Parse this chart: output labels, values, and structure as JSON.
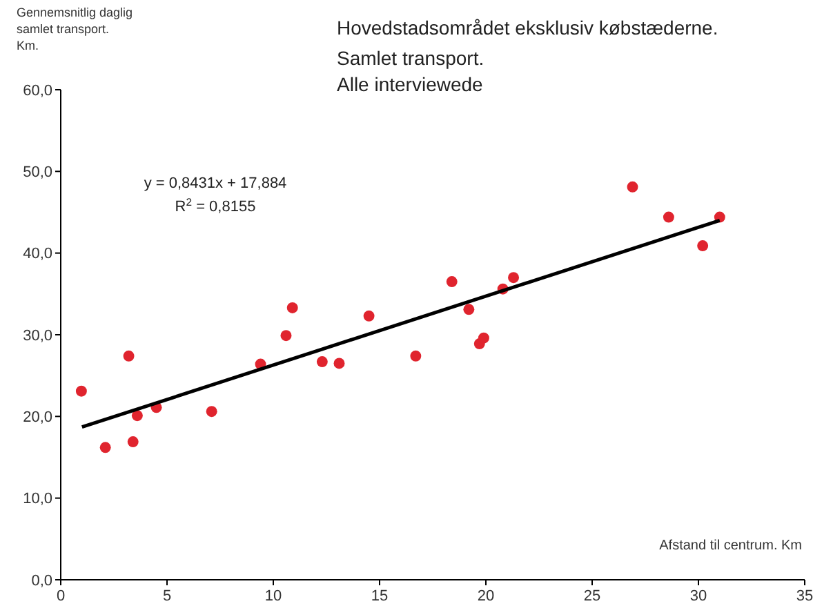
{
  "chart_data": {
    "type": "scatter",
    "title": "Hovedstadsområdet eksklusiv købstæderne.",
    "subtitle": "Samlet transport.\nAlle interviewede",
    "ylabel": "Gennemsnitlig daglig\nsamlet transport.\nKm.",
    "xlabel": "Afstand til centrum. Km",
    "annotations": [
      {
        "text": "y = 0,8431x + 17,884\nR$^{2}$ = 0,8155"
      }
    ],
    "series": [
      {
        "color": "#e0242e",
        "marker": "circle",
        "x": [
          0.97,
          2.1,
          3.2,
          3.4,
          3.6,
          4.5,
          7.1,
          9.4,
          10.6,
          10.9,
          12.3,
          13.1,
          14.5,
          16.7,
          18.4,
          19.2,
          19.7,
          19.9,
          20.8,
          21.3,
          26.9,
          28.6,
          30.2,
          31.0
        ],
        "values": [
          23.1,
          16.2,
          27.4,
          16.9,
          20.1,
          21.1,
          20.6,
          26.4,
          29.9,
          33.3,
          26.7,
          26.5,
          32.3,
          27.4,
          36.5,
          33.1,
          28.9,
          29.6,
          35.6,
          37.0,
          48.1,
          44.4,
          40.9,
          44.4
        ]
      },
      {
        "type": "line",
        "color": "#000000",
        "x": [
          1,
          31
        ],
        "values": [
          18.7,
          44.0
        ]
      }
    ],
    "grid": false,
    "xlim": [
      0,
      35
    ],
    "xticks": [
      0,
      5,
      10,
      15,
      20,
      25,
      30,
      35
    ],
    "ylim": [
      0,
      60
    ],
    "yticks": [
      {
        "value": 0,
        "label": "0,0"
      },
      {
        "value": 10,
        "label": "10,0"
      },
      {
        "value": 20,
        "label": "20,0"
      },
      {
        "value": 30,
        "label": "30,0"
      },
      {
        "value": 40,
        "label": "40,0"
      },
      {
        "value": 50,
        "label": "50,0"
      },
      {
        "value": 60,
        "label": "60,0"
      }
    ]
  }
}
